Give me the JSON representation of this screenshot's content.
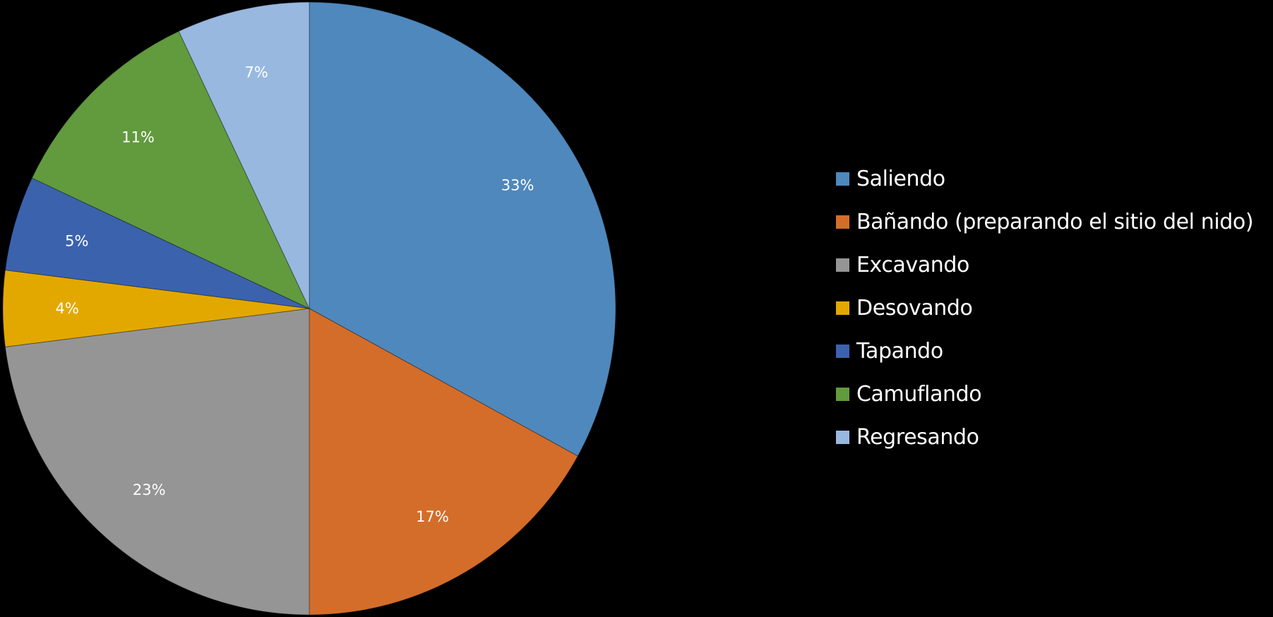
{
  "chart_data": {
    "type": "pie",
    "title": "",
    "legend_position": "right",
    "start_angle": "top, clockwise",
    "slices": [
      {
        "name": "Saliendo",
        "value": 33,
        "label": "33%",
        "color": "#4f88bd"
      },
      {
        "name": "Bañando (preparando el sitio del nido)",
        "value": 17,
        "label": "17%",
        "color": "#d46d2a"
      },
      {
        "name": "Excavando",
        "value": 23,
        "label": "23%",
        "color": "#959595"
      },
      {
        "name": "Desovando",
        "value": 4,
        "label": "4%",
        "color": "#e3a800"
      },
      {
        "name": "Tapando",
        "value": 5,
        "label": "5%",
        "color": "#3b62ad"
      },
      {
        "name": "Camuflando",
        "value": 11,
        "label": "11%",
        "color": "#629a3e"
      },
      {
        "name": "Regresando",
        "value": 7,
        "label": "7%",
        "color": "#98b8df"
      }
    ]
  },
  "colors": {
    "background": "#000000",
    "text": "#ffffff"
  }
}
